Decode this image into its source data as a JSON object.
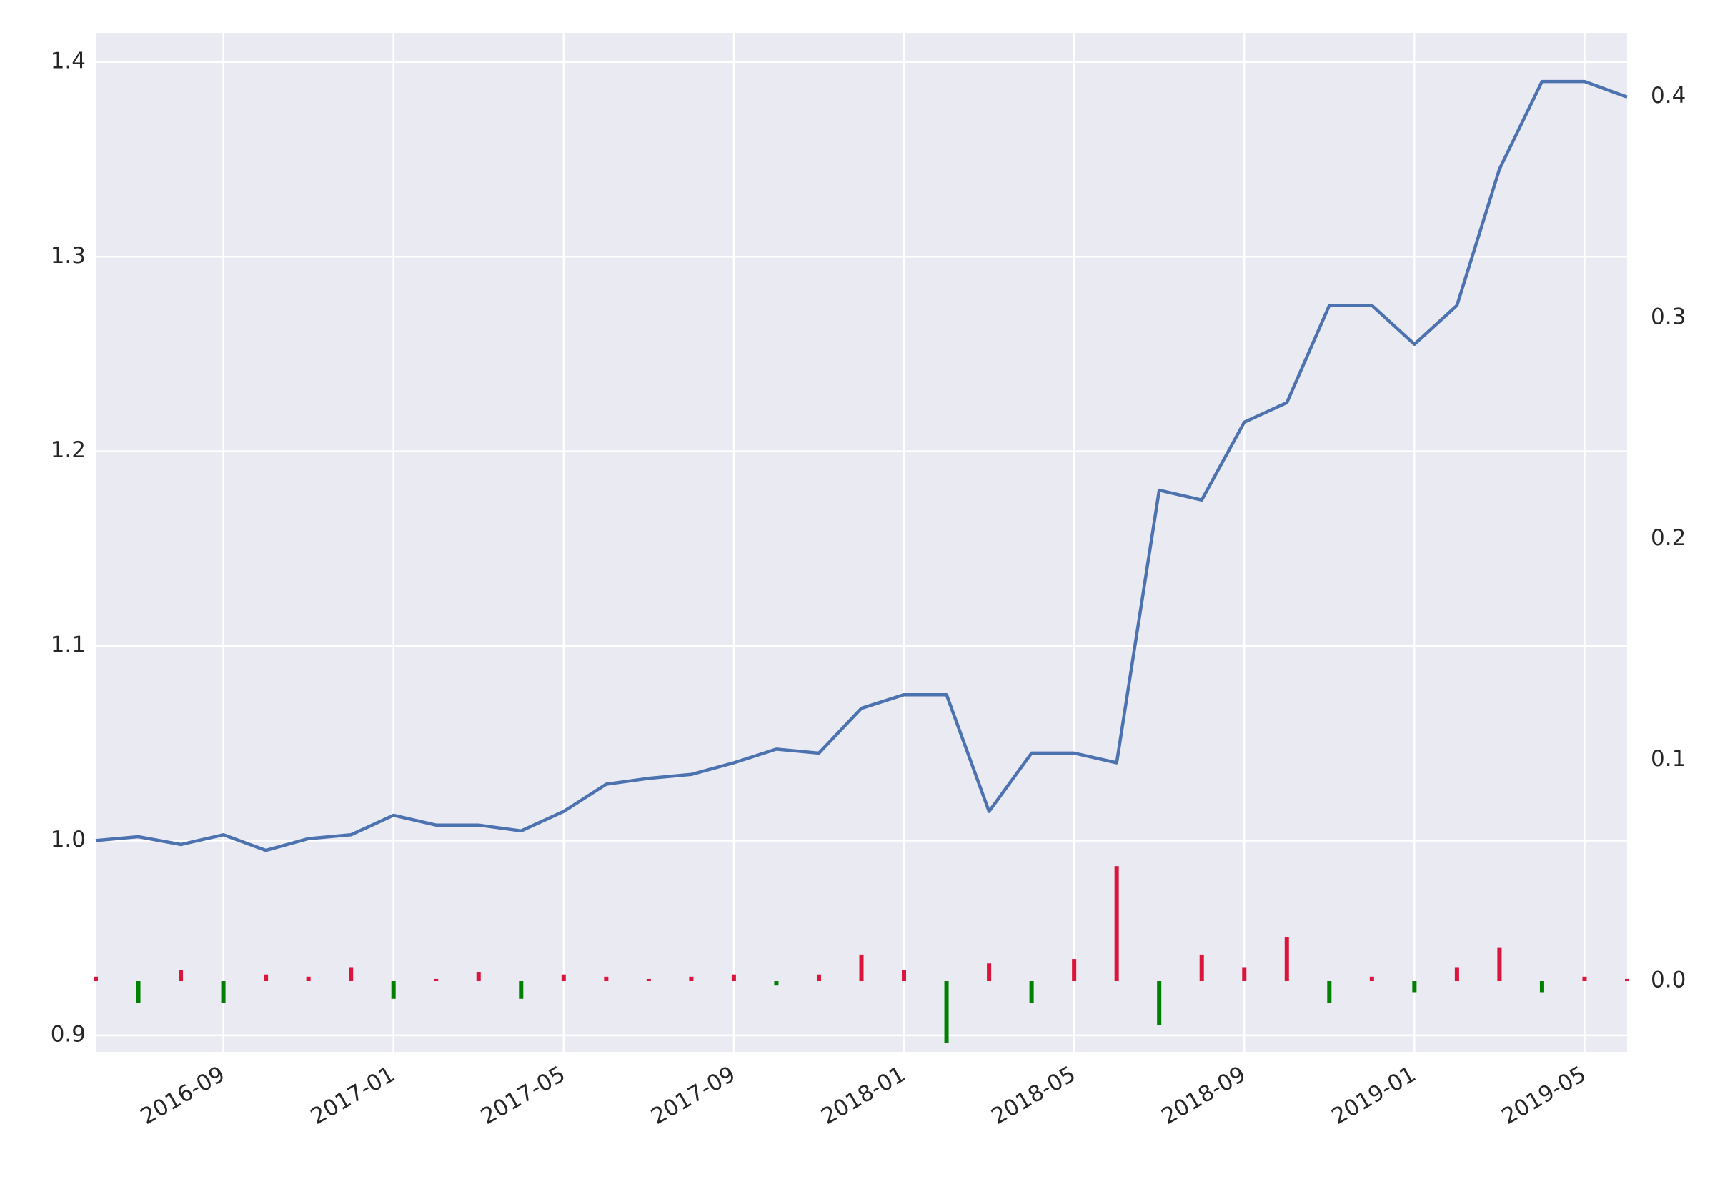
{
  "chart_data": {
    "type": "line",
    "x": [
      "2016-06",
      "2016-07",
      "2016-08",
      "2016-09",
      "2016-10",
      "2016-11",
      "2016-12",
      "2017-01",
      "2017-02",
      "2017-03",
      "2017-04",
      "2017-05",
      "2017-06",
      "2017-07",
      "2017-08",
      "2017-09",
      "2017-10",
      "2017-11",
      "2017-12",
      "2018-01",
      "2018-02",
      "2018-03",
      "2018-04",
      "2018-05",
      "2018-06",
      "2018-07",
      "2018-08",
      "2018-09",
      "2018-10",
      "2018-11",
      "2018-12",
      "2019-01",
      "2019-02",
      "2019-03",
      "2019-04",
      "2019-05",
      "2019-06"
    ],
    "series": [
      {
        "type": "line",
        "color": "#4c72b0",
        "values": [
          1.0,
          1.002,
          0.998,
          1.003,
          0.995,
          1.001,
          1.003,
          1.013,
          1.008,
          1.008,
          1.005,
          1.015,
          1.029,
          1.032,
          1.034,
          1.04,
          1.047,
          1.045,
          1.068,
          1.075,
          1.075,
          1.015,
          1.045,
          1.045,
          1.04,
          1.18,
          1.175,
          1.215,
          1.225,
          1.275,
          1.275,
          1.255,
          1.275,
          1.345,
          1.39,
          1.39,
          1.382
        ]
      },
      {
        "type": "bar",
        "axis": "y2",
        "positive_color": "#dc143c",
        "negative_color": "#008000",
        "values": [
          0.002,
          -0.01,
          0.005,
          -0.01,
          0.003,
          0.002,
          0.006,
          -0.008,
          0.001,
          0.004,
          -0.008,
          0.003,
          0.002,
          0.001,
          0.002,
          0.003,
          -0.002,
          0.003,
          0.012,
          0.005,
          -0.028,
          0.008,
          -0.01,
          0.01,
          0.052,
          -0.02,
          0.012,
          0.006,
          0.02,
          -0.01,
          0.002,
          -0.005,
          0.006,
          0.015,
          -0.005,
          0.002,
          0.001
        ]
      }
    ],
    "xlim": [
      "2016-06",
      "2019-06"
    ],
    "xticks": [
      "2016-09",
      "2017-01",
      "2017-05",
      "2017-09",
      "2018-01",
      "2018-05",
      "2018-09",
      "2019-01",
      "2019-05"
    ],
    "ylim": [
      0.8915,
      1.415
    ],
    "yticks": [
      0.9,
      {
        "value": 1,
        "label": "1.0"
      },
      1.1,
      1.2,
      1.3,
      1.4
    ],
    "y2lim": [
      -0.032,
      0.429
    ],
    "y2ticks": [
      {
        "value": 0,
        "label": "0.0"
      },
      0.1,
      0.2,
      0.3,
      0.4
    ],
    "grid": true
  }
}
